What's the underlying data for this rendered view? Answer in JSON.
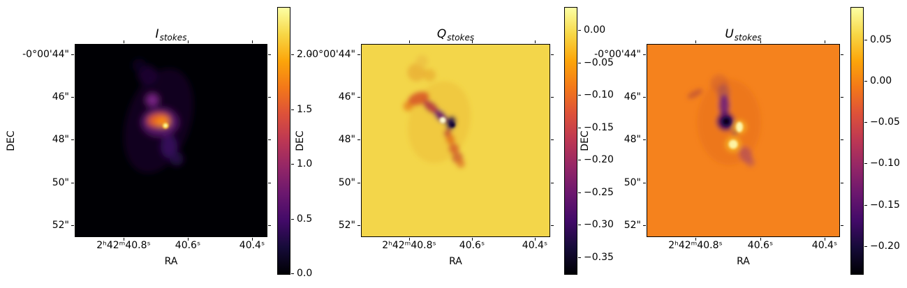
{
  "chart_data": {
    "type": "heatmap",
    "colormap": "inferno",
    "colormap_stops": [
      "#000004",
      "#160b39",
      "#420a68",
      "#6a176e",
      "#932667",
      "#bc3754",
      "#dd513a",
      "#f37819",
      "#fca50a",
      "#f7d746",
      "#fcffa4"
    ],
    "grid": false,
    "x_axis": {
      "label": "RA",
      "tick_labels": [
        "2ʰ42ᵐ40.8ˢ",
        "40.6ˢ",
        "40.4ˢ"
      ],
      "tick_values": [
        40.8,
        40.6,
        40.4
      ],
      "range": [
        40.952,
        40.352
      ],
      "units": "seconds of RA within 2h42m"
    },
    "y_axis": {
      "label": "DEC",
      "tick_labels": [
        "-0°00'44\"",
        "46\"",
        "48\"",
        "50\"",
        "52\""
      ],
      "tick_values": [
        44,
        46,
        48,
        50,
        52
      ],
      "range": [
        43.52,
        52.55
      ],
      "units": "arcseconds of DEC within -0°00'"
    },
    "panels": [
      {
        "name": "I_stokes",
        "title_var": "I",
        "title_sub": "stokes",
        "background_color": "#000004",
        "colorbar": {
          "tick_labels": [
            "2.0",
            "1.5",
            "1.0",
            "0.5",
            "0.0"
          ],
          "tick_values": [
            2.0,
            1.5,
            1.0,
            0.5,
            0.0
          ],
          "value_range": [
            -0.01,
            2.435
          ]
        },
        "features": "Mostly zero (black) background; bright compact source near RA 2h42m40.69s, DEC -0°00'47.3\" peaking near 2.4, with an orange inner blob and faint purple halo elongated NNE-SSW plus a fainter purple knot to the north."
      },
      {
        "name": "Q_stokes",
        "title_var": "Q",
        "title_sub": "stokes",
        "background_color": "#f3d64a",
        "colorbar": {
          "tick_labels": [
            "0.00",
            "−0.05",
            "−0.10",
            "−0.15",
            "−0.20",
            "−0.25",
            "−0.30",
            "−0.35"
          ],
          "tick_values": [
            0.0,
            -0.05,
            -0.1,
            -0.15,
            -0.2,
            -0.25,
            -0.3,
            -0.35
          ],
          "value_range": [
            -0.377,
            0.036
          ]
        },
        "features": "Mostly near-zero (yellow) background; S-shaped negative filament with dark minimum near −0.37 at RA 2h42m40.67s, DEC -0°00'47.3\", a small positive pale spot just west of the minimum, and an orange negative chain extending south."
      },
      {
        "name": "U_stokes",
        "title_var": "U",
        "title_sub": "stokes",
        "background_color": "#f5821d",
        "colorbar": {
          "tick_labels": [
            "0.05",
            "0.00",
            "−0.05",
            "−0.10",
            "−0.15",
            "−0.20"
          ],
          "tick_values": [
            0.05,
            0.0,
            -0.05,
            -0.1,
            -0.15,
            -0.2
          ],
          "value_range": [
            -0.235,
            0.09
          ]
        },
        "features": "Mostly near-zero (orange) background; dark negative blob near −0.23 at RA 2h42m40.70s, DEC -0°00'47.1\" with a purple streak extending north, two bright positive spots (≈ +0.08) to the SE and S, and a faint negative smudge further SE."
      }
    ]
  }
}
